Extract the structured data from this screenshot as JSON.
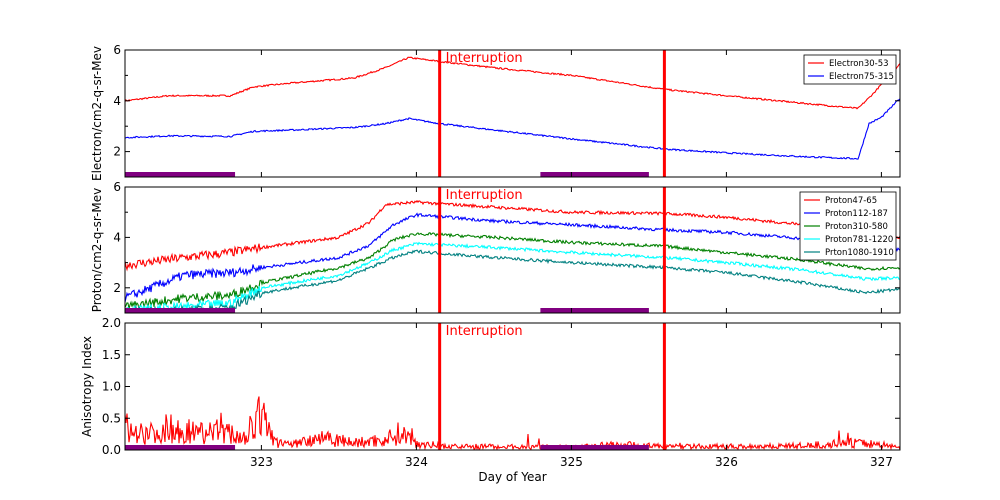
{
  "chart_data": [
    {
      "type": "line",
      "panel": "electron",
      "ylabel": "Electron/cm2-q-sr-Mev",
      "ylim": [
        1,
        6
      ],
      "yticks": [
        2,
        4,
        6
      ],
      "xlim": [
        322.12,
        327.12
      ],
      "xticks": [],
      "legend_position": "top-right",
      "annotation": "Interruption",
      "series": [
        {
          "name": "Electron30-53",
          "color": "#ff0000",
          "x": [
            322.12,
            322.4,
            322.8,
            322.95,
            323.2,
            323.6,
            323.8,
            323.95,
            324.15,
            324.5,
            325.0,
            325.6,
            326.0,
            326.5,
            326.85,
            326.95,
            327.05,
            327.12
          ],
          "y": [
            4.0,
            4.2,
            4.2,
            4.55,
            4.7,
            4.9,
            5.3,
            5.7,
            5.55,
            5.3,
            5.0,
            4.45,
            4.2,
            3.9,
            3.7,
            4.3,
            5.0,
            5.45
          ]
        },
        {
          "name": "Electron75-315",
          "color": "#0000ff",
          "x": [
            322.12,
            322.4,
            322.8,
            322.95,
            323.2,
            323.6,
            323.8,
            323.95,
            324.15,
            324.5,
            325.0,
            325.6,
            326.0,
            326.5,
            326.85,
            326.92,
            327.0,
            327.12
          ],
          "y": [
            2.55,
            2.62,
            2.6,
            2.8,
            2.85,
            2.95,
            3.1,
            3.3,
            3.1,
            2.85,
            2.5,
            2.1,
            1.95,
            1.8,
            1.72,
            3.1,
            3.35,
            4.1
          ]
        }
      ]
    },
    {
      "type": "line",
      "panel": "proton",
      "ylabel": "Proton/cm2-q-sr-Mev",
      "ylim": [
        1,
        6
      ],
      "yticks": [
        2,
        4,
        6
      ],
      "xlim": [
        322.12,
        327.12
      ],
      "xticks": [],
      "legend_position": "top-right",
      "annotation": "Interruption",
      "series": [
        {
          "name": "Proton47-65",
          "color": "#ff0000",
          "x": [
            322.12,
            322.5,
            322.8,
            323.0,
            323.5,
            323.7,
            323.8,
            324.0,
            324.5,
            325.0,
            325.6,
            326.0,
            326.5,
            327.12
          ],
          "y": [
            2.9,
            3.2,
            3.4,
            3.6,
            4.0,
            4.6,
            5.3,
            5.4,
            5.2,
            5.0,
            4.95,
            4.8,
            4.5,
            4.0
          ]
        },
        {
          "name": "Proton112-187",
          "color": "#0000ff",
          "x": [
            322.12,
            322.5,
            322.8,
            323.0,
            323.5,
            323.7,
            323.85,
            324.0,
            324.5,
            325.0,
            325.6,
            326.0,
            326.5,
            327.12
          ],
          "y": [
            1.6,
            2.5,
            2.6,
            2.8,
            3.2,
            3.7,
            4.5,
            4.9,
            4.65,
            4.5,
            4.3,
            4.2,
            3.95,
            3.5
          ]
        },
        {
          "name": "Proton310-580",
          "color": "#008000",
          "x": [
            322.12,
            322.5,
            322.8,
            323.0,
            323.5,
            323.7,
            323.85,
            324.0,
            324.5,
            325.0,
            325.6,
            326.0,
            326.5,
            326.9,
            327.12
          ],
          "y": [
            1.25,
            1.6,
            1.7,
            2.2,
            2.8,
            3.2,
            3.9,
            4.15,
            4.0,
            3.8,
            3.65,
            3.4,
            3.1,
            2.75,
            2.8
          ]
        },
        {
          "name": "Proton781-1220",
          "color": "#00ffff",
          "x": [
            322.12,
            322.5,
            322.8,
            323.0,
            323.5,
            323.7,
            323.85,
            324.0,
            324.5,
            325.0,
            325.6,
            326.0,
            326.5,
            326.9,
            327.12
          ],
          "y": [
            1.1,
            1.25,
            1.4,
            2.0,
            2.5,
            3.0,
            3.5,
            3.75,
            3.6,
            3.4,
            3.2,
            3.0,
            2.7,
            2.35,
            2.4
          ]
        },
        {
          "name": "Prton1080-1910",
          "color": "#008080",
          "x": [
            322.12,
            322.5,
            322.8,
            323.0,
            323.5,
            323.7,
            323.85,
            324.0,
            324.5,
            325.0,
            325.6,
            326.0,
            326.5,
            326.9,
            327.12
          ],
          "y": [
            1.05,
            1.1,
            1.2,
            1.8,
            2.3,
            2.8,
            3.2,
            3.45,
            3.2,
            3.0,
            2.8,
            2.6,
            2.2,
            1.8,
            1.95
          ]
        }
      ]
    },
    {
      "type": "line",
      "panel": "anisotropy",
      "ylabel": "Anisotropy Index",
      "xlabel": "Day of Year",
      "ylim": [
        0.0,
        2.0
      ],
      "yticks": [
        "0.0",
        "0.5",
        "1.0",
        "1.5",
        "2.0"
      ],
      "xlim": [
        322.12,
        327.12
      ],
      "xticks": [
        "323",
        "324",
        "325",
        "326",
        "327"
      ],
      "annotation": "Interruption",
      "series": [
        {
          "name": "Anisotropy",
          "color": "#ff0000",
          "x": [
            322.12,
            322.2,
            322.3,
            322.4,
            322.5,
            322.6,
            322.7,
            322.8,
            322.9,
            323.0,
            323.1,
            323.2,
            323.4,
            323.6,
            323.8,
            323.9,
            324.0,
            324.2,
            324.5,
            325.0,
            325.3,
            325.6,
            326.0,
            326.5,
            326.8,
            327.0,
            327.12
          ],
          "y": [
            0.35,
            0.3,
            0.25,
            0.35,
            0.3,
            0.28,
            0.3,
            0.25,
            0.2,
            0.55,
            0.1,
            0.08,
            0.2,
            0.1,
            0.15,
            0.25,
            0.1,
            0.05,
            0.05,
            0.04,
            0.08,
            0.05,
            0.05,
            0.06,
            0.1,
            0.08,
            0.03
          ]
        }
      ]
    }
  ],
  "interruption_days": [
    324.15,
    325.6
  ],
  "interruption_color": "#ff0000",
  "data_gaps": [
    [
      322.12,
      322.83
    ],
    [
      324.8,
      325.5
    ]
  ],
  "data_gap_color": "#800080"
}
